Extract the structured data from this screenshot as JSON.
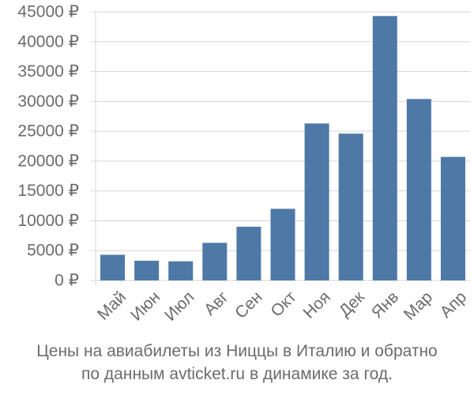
{
  "chart_data": {
    "type": "bar",
    "categories": [
      "Май",
      "Июн",
      "Июл",
      "Авг",
      "Сен",
      "Окт",
      "Ноя",
      "Дек",
      "Янв",
      "Мар",
      "Апр"
    ],
    "values": [
      4300,
      3300,
      3200,
      6300,
      9000,
      12000,
      26300,
      24600,
      44300,
      30400,
      20700
    ],
    "ylim": [
      0,
      45000
    ],
    "yticks": [
      0,
      5000,
      10000,
      15000,
      20000,
      25000,
      30000,
      35000,
      40000,
      45000
    ],
    "ytick_labels": [
      "0 ₽",
      "5000 ₽",
      "10000 ₽",
      "15000 ₽",
      "20000 ₽",
      "25000 ₽",
      "30000 ₽",
      "35000 ₽",
      "40000 ₽",
      "45000 ₽"
    ],
    "bar_color": "#4e79a7",
    "grid": true,
    "caption_line1": "Цены на авиабилеты из Ниццы в Италию и обратно",
    "caption_line2": "по данным avticket.ru в динамике за год."
  }
}
